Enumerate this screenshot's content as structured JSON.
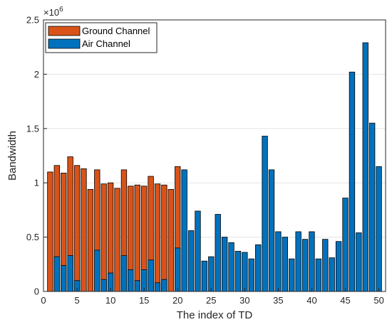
{
  "chart_data": {
    "type": "bar",
    "xlabel": "The index of TD",
    "ylabel": "Bandwidth",
    "y_exponent_base": "×10",
    "y_exponent_power": "6",
    "xlim": [
      0,
      51
    ],
    "ylim": [
      0,
      2.5
    ],
    "xticks": [
      0,
      5,
      10,
      15,
      20,
      25,
      30,
      35,
      40,
      45,
      50
    ],
    "yticks": [
      0,
      0.5,
      1,
      1.5,
      2,
      2.5
    ],
    "ytick_labels": [
      "0",
      "0.5",
      "1",
      "1.5",
      "2",
      "2.5"
    ],
    "grid": "y",
    "legend_position": "top-left",
    "series": [
      {
        "name": "Ground Channel",
        "color": "#D95319",
        "x": [
          1,
          2,
          3,
          4,
          5,
          6,
          7,
          8,
          9,
          10,
          11,
          12,
          13,
          14,
          15,
          16,
          17,
          18,
          19,
          20
        ],
        "values": [
          1.1,
          1.16,
          1.09,
          1.24,
          1.16,
          1.13,
          0.94,
          1.12,
          0.99,
          1.0,
          0.95,
          1.12,
          0.97,
          0.98,
          0.97,
          1.06,
          0.99,
          0.98,
          0.94,
          1.15
        ]
      },
      {
        "name": "Air Channel",
        "color": "#0072BD",
        "x": [
          2,
          3,
          4,
          5,
          8,
          9,
          10,
          12,
          13,
          14,
          15,
          16,
          17,
          18,
          20,
          21,
          22,
          23,
          24,
          25,
          26,
          27,
          28,
          29,
          30,
          31,
          32,
          33,
          34,
          35,
          36,
          37,
          38,
          39,
          40,
          41,
          42,
          43,
          44,
          45,
          46,
          47,
          48,
          49,
          50
        ],
        "values": [
          0.32,
          0.24,
          0.33,
          0.1,
          0.38,
          0.11,
          0.17,
          0.33,
          0.2,
          0.1,
          0.2,
          0.29,
          0.08,
          0.11,
          0.4,
          1.12,
          0.56,
          0.74,
          0.28,
          0.32,
          0.71,
          0.5,
          0.45,
          0.37,
          0.36,
          0.3,
          0.43,
          1.43,
          1.12,
          0.55,
          0.5,
          0.3,
          0.55,
          0.48,
          0.55,
          0.3,
          0.48,
          0.31,
          0.46,
          0.86,
          2.02,
          0.54,
          2.29,
          1.55,
          1.15
        ]
      }
    ]
  }
}
